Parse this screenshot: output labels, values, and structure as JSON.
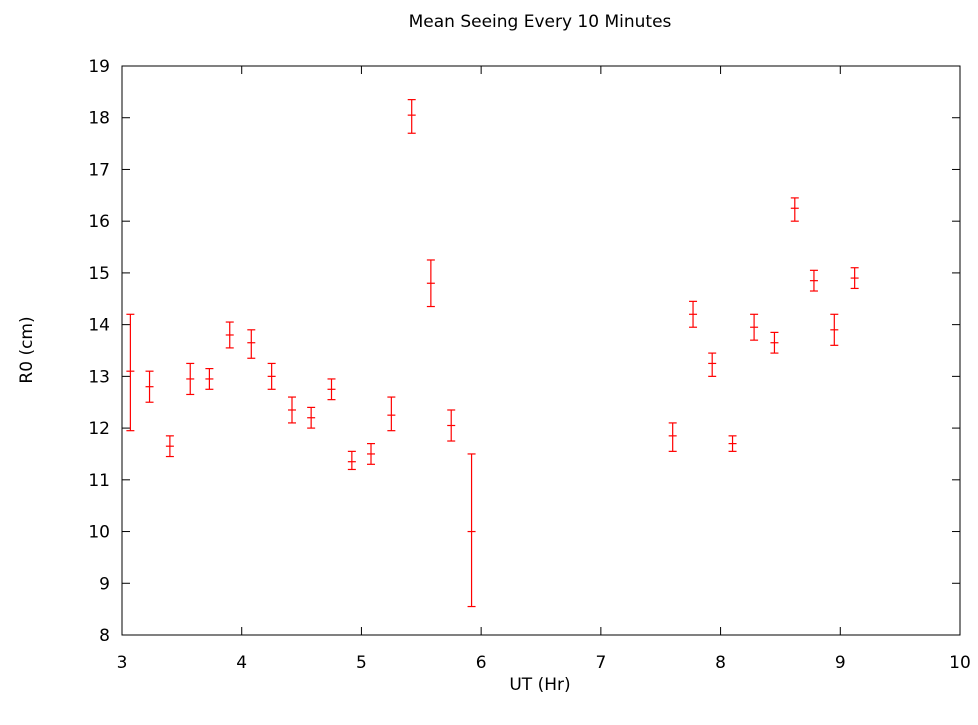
{
  "chart_data": {
    "type": "scatter",
    "title": "Mean Seeing Every 10 Minutes",
    "xlabel": "UT (Hr)",
    "ylabel": "R0 (cm)",
    "xlim": [
      3,
      10
    ],
    "ylim": [
      8,
      19
    ],
    "xticks": [
      3,
      4,
      5,
      6,
      7,
      8,
      9,
      10
    ],
    "yticks": [
      8,
      9,
      10,
      11,
      12,
      13,
      14,
      15,
      16,
      17,
      18,
      19
    ],
    "grid": false,
    "legend": "none",
    "series_color": "#ff0000",
    "points": [
      {
        "x": 3.07,
        "y": 13.1,
        "low": 11.95,
        "high": 14.2
      },
      {
        "x": 3.23,
        "y": 12.8,
        "low": 12.5,
        "high": 13.1
      },
      {
        "x": 3.4,
        "y": 11.65,
        "low": 11.45,
        "high": 11.85
      },
      {
        "x": 3.57,
        "y": 12.95,
        "low": 12.65,
        "high": 13.25
      },
      {
        "x": 3.73,
        "y": 12.95,
        "low": 12.75,
        "high": 13.15
      },
      {
        "x": 3.9,
        "y": 13.8,
        "low": 13.55,
        "high": 14.05
      },
      {
        "x": 4.08,
        "y": 13.65,
        "low": 13.35,
        "high": 13.9
      },
      {
        "x": 4.25,
        "y": 13.0,
        "low": 12.75,
        "high": 13.25
      },
      {
        "x": 4.42,
        "y": 12.35,
        "low": 12.1,
        "high": 12.6
      },
      {
        "x": 4.58,
        "y": 12.2,
        "low": 12.0,
        "high": 12.4
      },
      {
        "x": 4.75,
        "y": 12.75,
        "low": 12.55,
        "high": 12.95
      },
      {
        "x": 4.92,
        "y": 11.35,
        "low": 11.2,
        "high": 11.55
      },
      {
        "x": 5.08,
        "y": 11.5,
        "low": 11.3,
        "high": 11.7
      },
      {
        "x": 5.25,
        "y": 12.25,
        "low": 11.95,
        "high": 12.6
      },
      {
        "x": 5.42,
        "y": 18.05,
        "low": 17.7,
        "high": 18.35
      },
      {
        "x": 5.58,
        "y": 14.8,
        "low": 14.35,
        "high": 15.25
      },
      {
        "x": 5.75,
        "y": 12.05,
        "low": 11.75,
        "high": 12.35
      },
      {
        "x": 5.92,
        "y": 10.0,
        "low": 8.55,
        "high": 11.5
      },
      {
        "x": 7.6,
        "y": 11.85,
        "low": 11.55,
        "high": 12.1
      },
      {
        "x": 7.77,
        "y": 14.2,
        "low": 13.95,
        "high": 14.45
      },
      {
        "x": 7.93,
        "y": 13.25,
        "low": 13.0,
        "high": 13.45
      },
      {
        "x": 8.1,
        "y": 11.7,
        "low": 11.55,
        "high": 11.85
      },
      {
        "x": 8.28,
        "y": 13.95,
        "low": 13.7,
        "high": 14.2
      },
      {
        "x": 8.45,
        "y": 13.65,
        "low": 13.45,
        "high": 13.85
      },
      {
        "x": 8.62,
        "y": 16.25,
        "low": 16.0,
        "high": 16.45
      },
      {
        "x": 8.78,
        "y": 14.85,
        "low": 14.65,
        "high": 15.05
      },
      {
        "x": 8.95,
        "y": 13.9,
        "low": 13.6,
        "high": 14.2
      },
      {
        "x": 9.12,
        "y": 14.9,
        "low": 14.7,
        "high": 15.1
      }
    ]
  }
}
